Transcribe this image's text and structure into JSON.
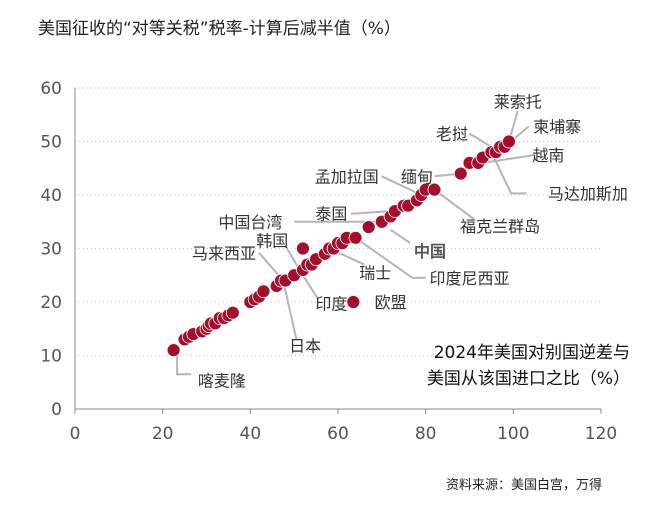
{
  "header": {
    "title": "美国征收的“对等关税”税率-计算后减半值（%）"
  },
  "footer": {
    "source": "资料来源：美国白宫，万得"
  },
  "chart_data": {
    "type": "scatter",
    "x_axis_title_lines": [
      "2024年美国对别国逆差与",
      "美国从该国进口之比（%）"
    ],
    "xlim": [
      0,
      120
    ],
    "ylim": [
      0,
      60
    ],
    "xticks": [
      0,
      20,
      40,
      60,
      80,
      100,
      120
    ],
    "yticks": [
      0,
      10,
      20,
      30,
      40,
      50,
      60
    ],
    "grid": "y-dotted",
    "marker_color": "#a50f2d",
    "label_color": "#333333",
    "label_color_emphasis": "#555555",
    "points": [
      {
        "x": 22.5,
        "y": 11
      },
      {
        "x": 25,
        "y": 13
      },
      {
        "x": 26,
        "y": 13.5
      },
      {
        "x": 27,
        "y": 14
      },
      {
        "x": 29,
        "y": 14.5
      },
      {
        "x": 30,
        "y": 15
      },
      {
        "x": 30.5,
        "y": 15.5
      },
      {
        "x": 31,
        "y": 16
      },
      {
        "x": 32,
        "y": 16
      },
      {
        "x": 33,
        "y": 17
      },
      {
        "x": 34,
        "y": 17
      },
      {
        "x": 35,
        "y": 17.5
      },
      {
        "x": 36,
        "y": 18
      },
      {
        "x": 40,
        "y": 20
      },
      {
        "x": 41,
        "y": 20.5
      },
      {
        "x": 42,
        "y": 21
      },
      {
        "x": 43,
        "y": 22
      },
      {
        "x": 46,
        "y": 23
      },
      {
        "x": 47,
        "y": 24
      },
      {
        "x": 48,
        "y": 24
      },
      {
        "x": 50,
        "y": 25
      },
      {
        "x": 52,
        "y": 26
      },
      {
        "x": 53,
        "y": 27
      },
      {
        "x": 54,
        "y": 27
      },
      {
        "x": 55,
        "y": 28
      },
      {
        "x": 57,
        "y": 29
      },
      {
        "x": 58,
        "y": 30
      },
      {
        "x": 59,
        "y": 30
      },
      {
        "x": 60,
        "y": 31
      },
      {
        "x": 61,
        "y": 31
      },
      {
        "x": 62,
        "y": 32
      },
      {
        "x": 64,
        "y": 32
      },
      {
        "x": 67,
        "y": 34
      },
      {
        "x": 70,
        "y": 35
      },
      {
        "x": 72,
        "y": 36
      },
      {
        "x": 73,
        "y": 37
      },
      {
        "x": 75,
        "y": 38
      },
      {
        "x": 76,
        "y": 38
      },
      {
        "x": 78,
        "y": 39
      },
      {
        "x": 79,
        "y": 40
      },
      {
        "x": 80,
        "y": 41
      },
      {
        "x": 82,
        "y": 41
      },
      {
        "x": 88,
        "y": 44
      },
      {
        "x": 90,
        "y": 46
      },
      {
        "x": 92,
        "y": 46
      },
      {
        "x": 93,
        "y": 47
      },
      {
        "x": 95,
        "y": 48
      },
      {
        "x": 96,
        "y": 48
      },
      {
        "x": 97,
        "y": 49
      },
      {
        "x": 98,
        "y": 49
      },
      {
        "x": 99,
        "y": 50
      },
      {
        "x": 52,
        "y": 30
      },
      {
        "x": 63.5,
        "y": 20
      }
    ],
    "annotations": [
      {
        "text": "莱索托",
        "x": 99,
        "y": 50,
        "lx": 101,
        "ly": 57.5,
        "anchor": "middle",
        "bold": false
      },
      {
        "text": "柬埔寨",
        "x": 98,
        "y": 49,
        "lx": 110,
        "ly": 52.8,
        "anchor": "middle",
        "bold": false
      },
      {
        "text": "老挝",
        "x": 96,
        "y": 48,
        "lx": 86,
        "ly": 51.5,
        "anchor": "middle",
        "bold": false
      },
      {
        "text": "越南",
        "x": 92,
        "y": 46,
        "lx": 108,
        "ly": 47.5,
        "anchor": "middle",
        "bold": false
      },
      {
        "text": "缅甸",
        "x": 88,
        "y": 44,
        "lx": 78,
        "ly": 43.5,
        "anchor": "middle",
        "bold": false
      },
      {
        "text": "马达加斯加",
        "x": 95,
        "y": 48,
        "lx": 117,
        "ly": 40.3,
        "anchor": "middle",
        "bold": false
      },
      {
        "text": "孟加拉国",
        "x": 79,
        "y": 40,
        "lx": 62,
        "ly": 43.5,
        "anchor": "middle",
        "bold": false
      },
      {
        "text": "福克兰群岛",
        "x": 82,
        "y": 41,
        "lx": 97,
        "ly": 34.2,
        "anchor": "middle",
        "bold": false
      },
      {
        "text": "泰国",
        "x": 73,
        "y": 37,
        "lx": 58.5,
        "ly": 36.5,
        "anchor": "middle",
        "bold": false
      },
      {
        "text": "中国台湾",
        "x": 70,
        "y": 35,
        "lx": 40,
        "ly": 35,
        "anchor": "middle",
        "bold": false
      },
      {
        "text": "中国",
        "x": 72,
        "y": 34,
        "lx": 81,
        "ly": 29.5,
        "anchor": "middle",
        "bold": true
      },
      {
        "text": "韩国",
        "x": 50,
        "y": 25,
        "lx": 45,
        "ly": 31.5,
        "anchor": "middle",
        "bold": false
      },
      {
        "text": "马来西亚",
        "x": 47,
        "y": 24,
        "lx": 34,
        "ly": 29.2,
        "anchor": "middle",
        "bold": false
      },
      {
        "text": "印度尼西亚",
        "x": 64,
        "y": 32,
        "lx": 90,
        "ly": 24.5,
        "anchor": "middle",
        "bold": false
      },
      {
        "text": "瑞士",
        "x": 58,
        "y": 30,
        "lx": 68.5,
        "ly": 25.5,
        "anchor": "middle",
        "bold": false
      },
      {
        "text": "印度",
        "x": 52,
        "y": 30,
        "lx": 58.5,
        "ly": 19.7,
        "anchor": "middle",
        "bold": false
      },
      {
        "text": "欧盟",
        "x": 63.5,
        "y": 20,
        "lx": 72,
        "ly": 20,
        "anchor": "middle",
        "bold": false
      },
      {
        "text": "日本",
        "x": 48,
        "y": 24,
        "lx": 52.5,
        "ly": 11.9,
        "anchor": "middle",
        "bold": false
      },
      {
        "text": "喀麦隆",
        "x": 22.5,
        "y": 11,
        "lx": 33.5,
        "ly": 5.3,
        "anchor": "middle",
        "bold": false
      }
    ],
    "leaders": [
      {
        "from": "莱索托",
        "pts": [
          [
            101,
            55.7
          ],
          [
            99,
            50
          ]
        ]
      },
      {
        "from": "柬埔寨",
        "pts": [
          [
            103.5,
            52.8
          ],
          [
            98,
            49
          ]
        ]
      },
      {
        "from": "老挝",
        "pts": [
          [
            90,
            51.5
          ],
          [
            96,
            48.5
          ]
        ]
      },
      {
        "from": "越南",
        "pts": [
          [
            105,
            47.5
          ],
          [
            93,
            46
          ]
        ]
      },
      {
        "from": "缅甸",
        "pts": [
          [
            82,
            43.5
          ],
          [
            88,
            44
          ]
        ]
      },
      {
        "from": "马达加斯加",
        "pts": [
          [
            103,
            40.3
          ],
          [
            99.5,
            40.3
          ],
          [
            95,
            48
          ]
        ]
      },
      {
        "from": "孟加拉国",
        "pts": [
          [
            70,
            43.5
          ],
          [
            79,
            40
          ]
        ]
      },
      {
        "from": "福克兰群岛",
        "pts": [
          [
            91,
            35.5
          ],
          [
            82,
            41
          ]
        ]
      },
      {
        "from": "泰国",
        "pts": [
          [
            63,
            36.5
          ],
          [
            72.5,
            37
          ]
        ]
      },
      {
        "from": "中国台湾",
        "pts": [
          [
            50,
            35
          ],
          [
            70,
            35
          ]
        ]
      },
      {
        "from": "中国",
        "pts": [
          [
            76.5,
            31
          ],
          [
            72,
            33.5
          ]
        ]
      },
      {
        "from": "韩国",
        "pts": [
          [
            48,
            30.5
          ],
          [
            52,
            25
          ]
        ]
      },
      {
        "from": "马来西亚",
        "pts": [
          [
            42,
            29.2
          ],
          [
            47.5,
            24
          ]
        ]
      },
      {
        "from": "印度尼西亚",
        "pts": [
          [
            80,
            24.5
          ],
          [
            77,
            24.5
          ],
          [
            64,
            32
          ]
        ]
      },
      {
        "from": "瑞士",
        "pts": [
          [
            66,
            27
          ],
          [
            58,
            30
          ]
        ]
      },
      {
        "from": "印度",
        "pts": [
          [
            55.5,
            20.5
          ],
          [
            52,
            25
          ]
        ]
      },
      {
        "from": "日本",
        "pts": [
          [
            50.5,
            13
          ],
          [
            47.5,
            24
          ]
        ]
      },
      {
        "from": "喀麦隆",
        "pts": [
          [
            26.5,
            6.5
          ],
          [
            23.3,
            6.5
          ],
          [
            23.3,
            10
          ]
        ]
      }
    ]
  }
}
